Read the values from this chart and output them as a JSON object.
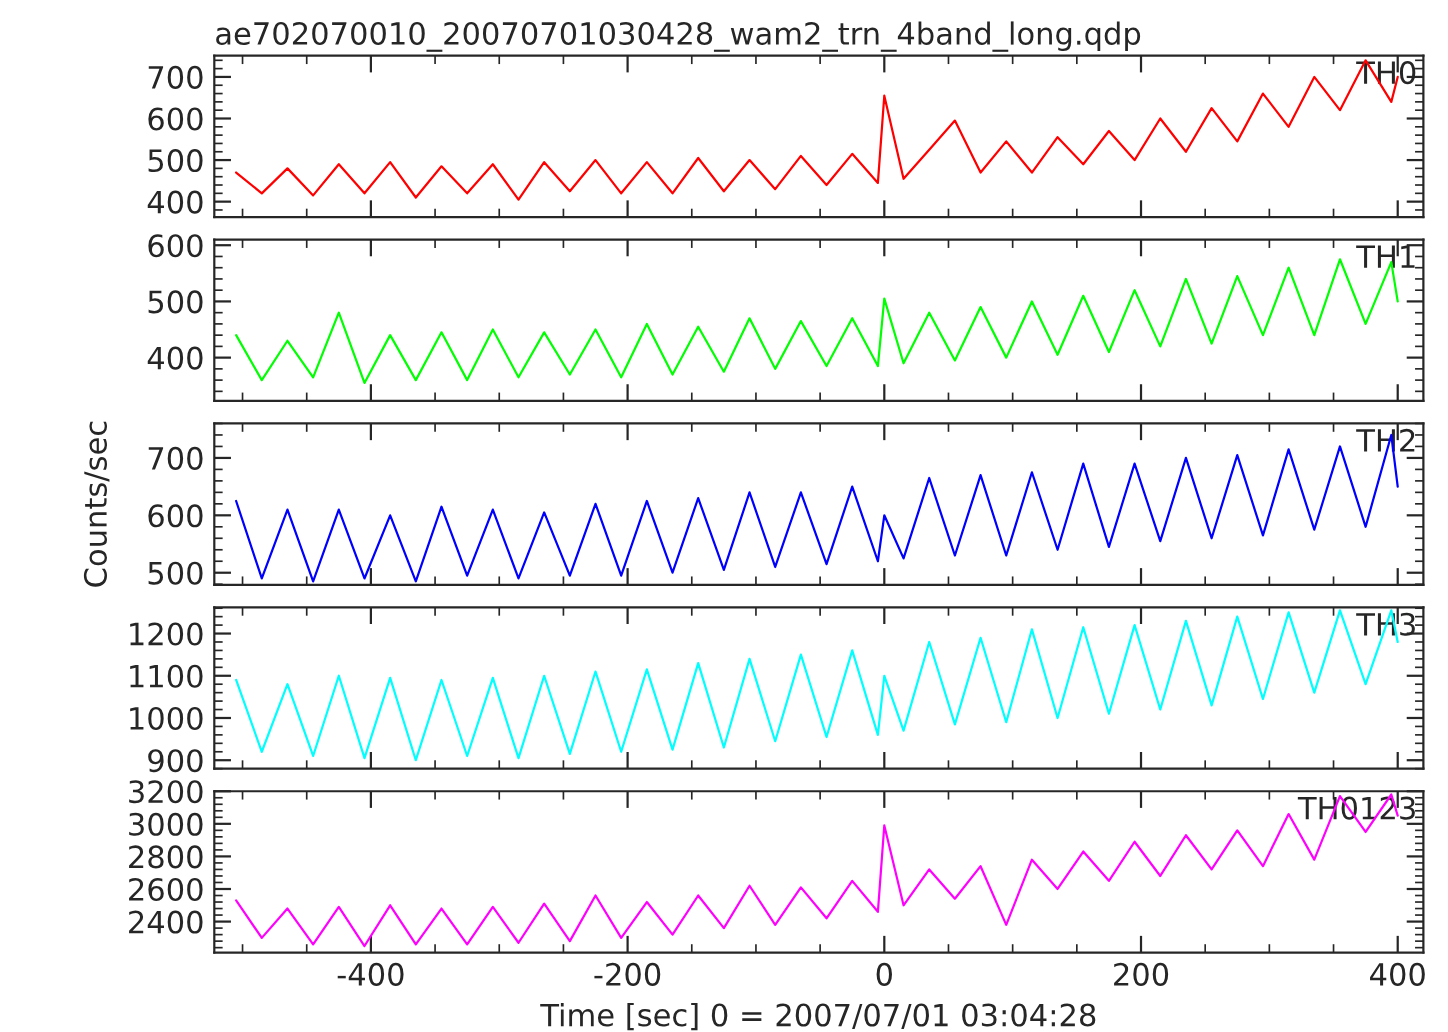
{
  "chart_data": [
    {
      "type": "line",
      "title": "ae702070010_20070701030428_wam2_trn_4band_long.qdp",
      "xlim": [
        -522,
        420
      ],
      "xticks": [
        -400,
        -200,
        0,
        200,
        400
      ],
      "ylim": [
        363,
        751
      ],
      "yticks": [
        400,
        500,
        600,
        700
      ],
      "tick_labels": "y",
      "grid": false,
      "legend": false,
      "x": [
        -505,
        -485,
        -465,
        -445,
        -425,
        -405,
        -385,
        -365,
        -345,
        -325,
        -305,
        -285,
        -265,
        -245,
        -225,
        -205,
        -185,
        -165,
        -145,
        -125,
        -105,
        -85,
        -65,
        -45,
        -25,
        -5,
        0,
        15,
        35,
        55,
        75,
        95,
        115,
        135,
        155,
        175,
        195,
        215,
        235,
        255,
        275,
        295,
        315,
        335,
        355,
        375,
        395,
        400
      ],
      "series": [
        {
          "name": "TH0",
          "color": "#ff0000",
          "values": [
            470,
            420,
            480,
            415,
            490,
            420,
            495,
            410,
            485,
            420,
            490,
            405,
            495,
            425,
            500,
            420,
            495,
            420,
            505,
            425,
            500,
            430,
            510,
            440,
            515,
            445,
            655,
            455,
            525,
            595,
            470,
            545,
            470,
            555,
            490,
            570,
            500,
            600,
            520,
            625,
            545,
            660,
            580,
            700,
            620,
            740,
            640,
            700
          ]
        }
      ]
    },
    {
      "type": "line",
      "xlim": [
        -522,
        420
      ],
      "xticks": [
        -400,
        -200,
        0,
        200,
        400
      ],
      "ylim": [
        323,
        610
      ],
      "yticks": [
        400,
        500,
        600
      ],
      "tick_labels": "y",
      "grid": false,
      "legend": false,
      "x": [
        -505,
        -485,
        -465,
        -445,
        -425,
        -405,
        -385,
        -365,
        -345,
        -325,
        -305,
        -285,
        -265,
        -245,
        -225,
        -205,
        -185,
        -165,
        -145,
        -125,
        -105,
        -85,
        -65,
        -45,
        -25,
        -5,
        0,
        15,
        35,
        55,
        75,
        95,
        115,
        135,
        155,
        175,
        195,
        215,
        235,
        255,
        275,
        295,
        315,
        335,
        355,
        375,
        395,
        400
      ],
      "series": [
        {
          "name": "TH1",
          "color": "#00ff00",
          "values": [
            440,
            360,
            430,
            365,
            480,
            355,
            440,
            360,
            445,
            360,
            450,
            365,
            445,
            370,
            450,
            365,
            460,
            370,
            455,
            375,
            470,
            380,
            465,
            385,
            470,
            385,
            505,
            390,
            480,
            395,
            490,
            400,
            500,
            405,
            510,
            410,
            520,
            420,
            540,
            425,
            545,
            440,
            560,
            440,
            575,
            460,
            570,
            500
          ]
        }
      ]
    },
    {
      "type": "line",
      "ylabel": "Counts/sec",
      "xlim": [
        -522,
        420
      ],
      "xticks": [
        -400,
        -200,
        0,
        200,
        400
      ],
      "ylim": [
        479,
        760
      ],
      "yticks": [
        500,
        600,
        700
      ],
      "tick_labels": "y",
      "grid": false,
      "legend": false,
      "x": [
        -505,
        -485,
        -465,
        -445,
        -425,
        -405,
        -385,
        -365,
        -345,
        -325,
        -305,
        -285,
        -265,
        -245,
        -225,
        -205,
        -185,
        -165,
        -145,
        -125,
        -105,
        -85,
        -65,
        -45,
        -25,
        -5,
        0,
        15,
        35,
        55,
        75,
        95,
        115,
        135,
        155,
        175,
        195,
        215,
        235,
        255,
        275,
        295,
        315,
        335,
        355,
        375,
        395,
        400
      ],
      "series": [
        {
          "name": "TH2",
          "color": "#0000ff",
          "values": [
            625,
            490,
            610,
            485,
            610,
            490,
            600,
            485,
            615,
            495,
            610,
            490,
            605,
            495,
            620,
            495,
            625,
            500,
            630,
            505,
            640,
            510,
            640,
            515,
            650,
            520,
            600,
            525,
            665,
            530,
            670,
            530,
            675,
            540,
            690,
            545,
            690,
            555,
            700,
            560,
            705,
            565,
            715,
            575,
            720,
            580,
            740,
            650
          ]
        }
      ]
    },
    {
      "type": "line",
      "xlim": [
        -522,
        420
      ],
      "xticks": [
        -400,
        -200,
        0,
        200,
        400
      ],
      "ylim": [
        880,
        1262
      ],
      "yticks": [
        900,
        1000,
        1100,
        1200
      ],
      "tick_labels": "y",
      "grid": false,
      "legend": false,
      "x": [
        -505,
        -485,
        -465,
        -445,
        -425,
        -405,
        -385,
        -365,
        -345,
        -325,
        -305,
        -285,
        -265,
        -245,
        -225,
        -205,
        -185,
        -165,
        -145,
        -125,
        -105,
        -85,
        -65,
        -45,
        -25,
        -5,
        0,
        15,
        35,
        55,
        75,
        95,
        115,
        135,
        155,
        175,
        195,
        215,
        235,
        255,
        275,
        295,
        315,
        335,
        355,
        375,
        395,
        400
      ],
      "series": [
        {
          "name": "TH3",
          "color": "#00ffff",
          "values": [
            1090,
            920,
            1080,
            910,
            1100,
            905,
            1095,
            900,
            1090,
            910,
            1095,
            905,
            1100,
            915,
            1110,
            920,
            1115,
            925,
            1130,
            930,
            1140,
            945,
            1150,
            955,
            1160,
            960,
            1100,
            970,
            1180,
            985,
            1190,
            990,
            1210,
            1000,
            1215,
            1010,
            1220,
            1020,
            1230,
            1030,
            1240,
            1045,
            1250,
            1060,
            1255,
            1080,
            1255,
            1180
          ]
        }
      ]
    },
    {
      "type": "line",
      "xlabel": "Time [sec] 0 = 2007/07/01 03:04:28",
      "xlim": [
        -522,
        420
      ],
      "xticks": [
        -400,
        -200,
        0,
        200,
        400
      ],
      "ylim": [
        2210,
        3200
      ],
      "yticks": [
        2400,
        2600,
        2800,
        3000,
        3200
      ],
      "grid": false,
      "legend": false,
      "x": [
        -505,
        -485,
        -465,
        -445,
        -425,
        -405,
        -385,
        -365,
        -345,
        -325,
        -305,
        -285,
        -265,
        -245,
        -225,
        -205,
        -185,
        -165,
        -145,
        -125,
        -105,
        -85,
        -65,
        -45,
        -25,
        -5,
        0,
        15,
        35,
        55,
        75,
        95,
        115,
        135,
        155,
        175,
        195,
        215,
        235,
        255,
        275,
        295,
        315,
        335,
        355,
        375,
        395,
        400
      ],
      "series": [
        {
          "name": "TH0123",
          "color": "#ff00ff",
          "values": [
            2530,
            2300,
            2480,
            2260,
            2490,
            2250,
            2500,
            2260,
            2480,
            2260,
            2490,
            2270,
            2510,
            2280,
            2560,
            2300,
            2520,
            2320,
            2560,
            2360,
            2620,
            2380,
            2610,
            2420,
            2650,
            2460,
            2990,
            2500,
            2720,
            2540,
            2740,
            2380,
            2780,
            2600,
            2830,
            2650,
            2890,
            2680,
            2930,
            2720,
            2960,
            2740,
            3060,
            2780,
            3170,
            2950,
            3180,
            3050
          ]
        }
      ]
    }
  ]
}
